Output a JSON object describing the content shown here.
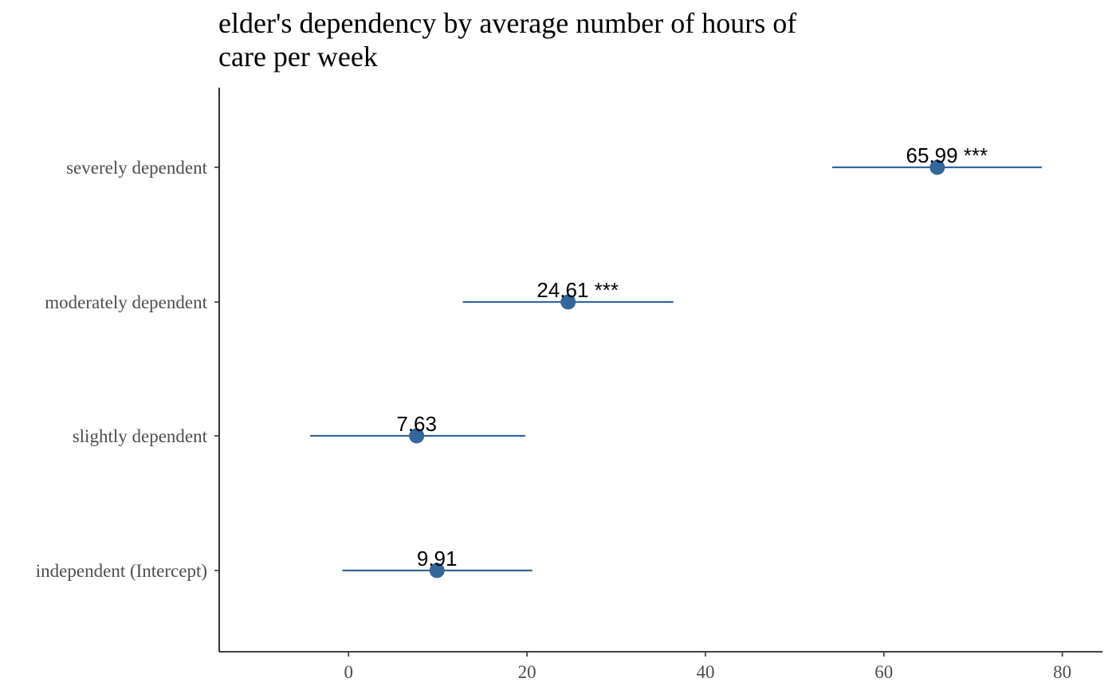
{
  "chart_data": {
    "type": "scatter",
    "title_lines": [
      "elder's dependency by average number of hours of",
      "care per week"
    ],
    "xlabel": "",
    "ylabel": "",
    "xlim": [
      -14.5,
      84.5
    ],
    "x_ticks": [
      0,
      20,
      40,
      60,
      80
    ],
    "x_tick_labels": [
      "0",
      "20",
      "40",
      "60",
      "80"
    ],
    "grid": false,
    "categories": [
      "severely dependent",
      "moderately dependent",
      "slightly dependent",
      "independent (Intercept)"
    ],
    "estimates": [
      65.99,
      24.61,
      7.63,
      9.91
    ],
    "ci_low": [
      54.2,
      12.8,
      -4.3,
      -0.7
    ],
    "ci_high": [
      77.7,
      36.4,
      19.8,
      20.6
    ],
    "labels": [
      "65.99 ***",
      "24.61 ***",
      "7.63",
      "9.91"
    ],
    "color": "#336699"
  }
}
